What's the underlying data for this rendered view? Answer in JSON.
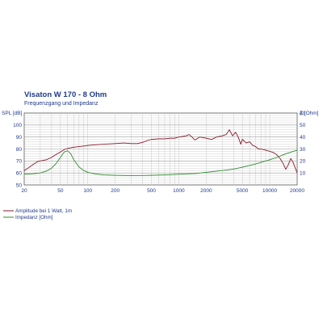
{
  "chart_data": {
    "type": "line",
    "title": "Visaton W 170 - 8 Ohm",
    "subtitle": "Frequenzgang und Impedanz",
    "ylabel_left": "SPL [dB]",
    "ylabel_right": "Z [Ohm]",
    "x_scale": "log",
    "xlim": [
      20,
      20000
    ],
    "ylim_left": [
      50,
      110
    ],
    "ylim_right": [
      0,
      60
    ],
    "grid": true,
    "x_ticks": [
      20,
      50,
      100,
      200,
      500,
      1000,
      2000,
      5000,
      10000,
      20000
    ],
    "y_ticks_left": [
      50,
      60,
      70,
      80,
      90,
      100
    ],
    "y_ticks_right": [
      10,
      20,
      30,
      40,
      50,
      60
    ],
    "legend_position": "bottom-left",
    "series": [
      {
        "name": "Amplitude bei 1 Watt, 1m",
        "color": "#8b1a2a",
        "axis": "left",
        "x": [
          20,
          22,
          25,
          28,
          30,
          35,
          40,
          45,
          50,
          55,
          60,
          65,
          70,
          80,
          90,
          100,
          120,
          150,
          200,
          250,
          300,
          350,
          400,
          450,
          500,
          600,
          700,
          800,
          900,
          1000,
          1100,
          1200,
          1300,
          1400,
          1500,
          1700,
          2000,
          2300,
          2600,
          3000,
          3300,
          3600,
          3900,
          4200,
          4500,
          4800,
          5000,
          5500,
          6000,
          6500,
          7000,
          7500,
          8000,
          9000,
          10000,
          11000,
          12000,
          13000,
          14000,
          15000,
          16000,
          17000,
          18000,
          20000
        ],
        "values": [
          62,
          64,
          67,
          69.5,
          70,
          71,
          73,
          75.5,
          77.5,
          79.5,
          80.5,
          81,
          81.5,
          82,
          82.5,
          83,
          83.5,
          84,
          84.5,
          85,
          84.5,
          84.5,
          85.5,
          87,
          88,
          88.5,
          88.5,
          89,
          89,
          90,
          90.5,
          91,
          92,
          90,
          87.5,
          90,
          89,
          88,
          90,
          91,
          92,
          96,
          91,
          94,
          90,
          84,
          88,
          85,
          86,
          83,
          82,
          80,
          80,
          79,
          78,
          77,
          75,
          72,
          68,
          63,
          67,
          72,
          69,
          60
        ]
      },
      {
        "name": "Impedanz [Ohm]",
        "color": "#2e8b2e",
        "axis": "right",
        "x": [
          20,
          25,
          30,
          35,
          40,
          45,
          50,
          55,
          60,
          65,
          70,
          80,
          90,
          100,
          120,
          150,
          200,
          300,
          400,
          500,
          700,
          1000,
          1500,
          2000,
          3000,
          4000,
          5000,
          6000,
          7000,
          8000,
          10000,
          12000,
          15000,
          20000
        ],
        "values": [
          9,
          9.3,
          10,
          11.5,
          14,
          18,
          23,
          27.5,
          28.5,
          26,
          21,
          15,
          12,
          10.5,
          9.2,
          8.4,
          8,
          7.8,
          7.9,
          8,
          8.4,
          9,
          9.5,
          10.5,
          12,
          13.2,
          14.8,
          16.2,
          17.5,
          18.8,
          21,
          23,
          26,
          29
        ]
      }
    ]
  }
}
